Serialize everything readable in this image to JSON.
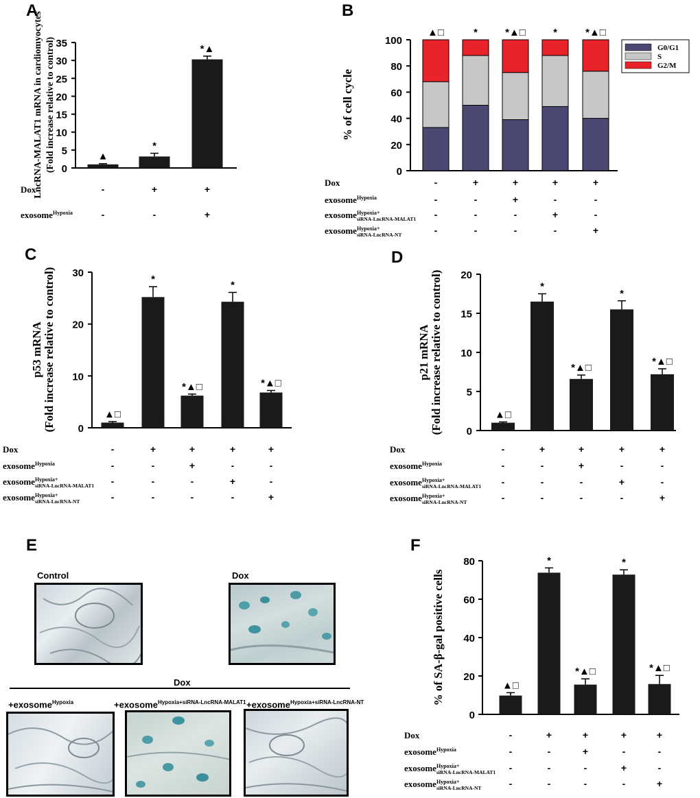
{
  "chart_data": [
    {
      "panel": "A",
      "type": "bar",
      "ylabel_lines": [
        "LncRNA-MALAT1 mRNA in cardiomyocytes",
        "(Fold increase relative to control)"
      ],
      "ylim": [
        0,
        35
      ],
      "yticks": [
        0,
        5,
        10,
        15,
        20,
        25,
        30,
        35
      ],
      "values": [
        1.0,
        3.2,
        30.3
      ],
      "errors": [
        0.2,
        0.9,
        0.9
      ],
      "annotations": [
        "▲",
        "*",
        "*▲"
      ],
      "row_labels": [
        "Dox",
        "exosome"
      ],
      "row_label_sups": [
        "",
        "Hypoxia"
      ],
      "row_label_subs": [
        "",
        ""
      ],
      "rows": [
        [
          "-",
          "+",
          "+"
        ],
        [
          "-",
          "-",
          "+"
        ]
      ]
    },
    {
      "panel": "B",
      "type": "stacked-bar",
      "ylabel_lines": [
        "% of cell cycle"
      ],
      "ylim": [
        0,
        100
      ],
      "yticks": [
        0,
        20,
        40,
        60,
        80,
        100
      ],
      "series": [
        {
          "name": "G0/G1",
          "color": "#4b4872",
          "values": [
            33,
            50,
            39,
            49,
            40
          ]
        },
        {
          "name": "S",
          "color": "#c7c7c7",
          "values": [
            35,
            38,
            36,
            39,
            36
          ]
        },
        {
          "name": "G2/M",
          "color": "#e8232a",
          "values": [
            32,
            12,
            25,
            12,
            24
          ]
        }
      ],
      "annotations": [
        "▲□",
        "*",
        "*▲□",
        "*",
        "*▲□"
      ],
      "row_labels": [
        "Dox",
        "exosome",
        "exosome",
        "exosome"
      ],
      "row_label_sups": [
        "",
        "Hypoxia",
        "Hypoxia+",
        "Hypoxia+"
      ],
      "row_label_subs": [
        "",
        "",
        "siRNA-LncRNA-MALAT1",
        "siRNA-LncRNA-NT"
      ],
      "rows": [
        [
          "-",
          "+",
          "+",
          "+",
          "+"
        ],
        [
          "-",
          "-",
          "+",
          "-",
          "-"
        ],
        [
          "-",
          "-",
          "-",
          "+",
          "-"
        ],
        [
          "-",
          "-",
          "-",
          "-",
          "+"
        ]
      ]
    },
    {
      "panel": "C",
      "type": "bar",
      "ylabel_lines": [
        "p53 mRNA",
        "(Fold increase relative to control)"
      ],
      "ylim": [
        0,
        30
      ],
      "yticks": [
        0,
        10,
        20,
        30
      ],
      "values": [
        1.0,
        25.2,
        6.2,
        24.3,
        6.8
      ],
      "errors": [
        0.2,
        2.0,
        0.3,
        1.8,
        0.4
      ],
      "annotations": [
        "▲□",
        "*",
        "*▲□",
        "*",
        "*▲□"
      ],
      "row_labels": [
        "Dox",
        "exosome",
        "exosome",
        "exosome"
      ],
      "row_label_sups": [
        "",
        "Hypoxia",
        "Hypoxia+",
        "Hypoxia+"
      ],
      "row_label_subs": [
        "",
        "",
        "siRNA-LncRNA-MALAT1",
        "siRNA-LncRNA-NT"
      ],
      "rows": [
        [
          "-",
          "+",
          "+",
          "+",
          "+"
        ],
        [
          "-",
          "-",
          "+",
          "-",
          "-"
        ],
        [
          "-",
          "-",
          "-",
          "+",
          "-"
        ],
        [
          "-",
          "-",
          "-",
          "-",
          "+"
        ]
      ]
    },
    {
      "panel": "D",
      "type": "bar",
      "ylabel_lines": [
        "p21 mRNA",
        "(Fold increase relative to control)"
      ],
      "ylim": [
        0,
        20
      ],
      "yticks": [
        0,
        5,
        10,
        15,
        20
      ],
      "values": [
        1.0,
        16.5,
        6.6,
        15.5,
        7.2
      ],
      "errors": [
        0.1,
        1.0,
        0.5,
        1.1,
        0.7
      ],
      "annotations": [
        "▲□",
        "*",
        "*▲□",
        "*",
        "*▲□"
      ],
      "row_labels": [
        "Dox",
        "exosome",
        "exosome",
        "exosome"
      ],
      "row_label_sups": [
        "",
        "Hypoxia",
        "Hypoxia+",
        "Hypoxia+"
      ],
      "row_label_subs": [
        "",
        "",
        "siRNA-LncRNA-MALAT1",
        "siRNA-LncRNA-NT"
      ],
      "rows": [
        [
          "-",
          "+",
          "+",
          "+",
          "+"
        ],
        [
          "-",
          "-",
          "+",
          "-",
          "-"
        ],
        [
          "-",
          "-",
          "-",
          "+",
          "-"
        ],
        [
          "-",
          "-",
          "-",
          "-",
          "+"
        ]
      ]
    },
    {
      "panel": "F",
      "type": "bar",
      "ylabel_lines": [
        "% of SA-β-gal positive cells"
      ],
      "ylim": [
        0,
        80
      ],
      "yticks": [
        0,
        20,
        40,
        60,
        80
      ],
      "values": [
        9.8,
        73.8,
        15.5,
        72.8,
        15.8
      ],
      "errors": [
        1.5,
        2.5,
        3.0,
        2.5,
        4.5
      ],
      "annotations": [
        "▲□",
        "*",
        "*▲□",
        "*",
        "*▲□"
      ],
      "row_labels": [
        "Dox",
        "exosome",
        "exosome",
        "exosome"
      ],
      "row_label_sups": [
        "",
        "Hypoxia",
        "Hypoxia+",
        "Hypoxia+"
      ],
      "row_label_subs": [
        "",
        "",
        "siRNA-LncRNA-MALAT1",
        "siRNA-LncRNA-NT"
      ],
      "rows": [
        [
          "-",
          "+",
          "+",
          "+",
          "+"
        ],
        [
          "-",
          "-",
          "+",
          "-",
          "-"
        ],
        [
          "-",
          "-",
          "-",
          "+",
          "-"
        ],
        [
          "-",
          "-",
          "-",
          "-",
          "+"
        ]
      ]
    }
  ],
  "panel_labels": {
    "a": "A",
    "b": "B",
    "c": "C",
    "d": "D",
    "e": "E",
    "f": "F"
  },
  "micrographs": {
    "control": "Control",
    "dox": "Dox",
    "group": "Dox",
    "exo_prefix": "+exosome",
    "exo_hyp_sup": "Hypoxia",
    "exo_mal_sup": "Hypoxia+siRNA-LncRNA-MALAT1",
    "exo_nt_sup": "Hypoxia+siRNA-LncRNA-NT"
  }
}
